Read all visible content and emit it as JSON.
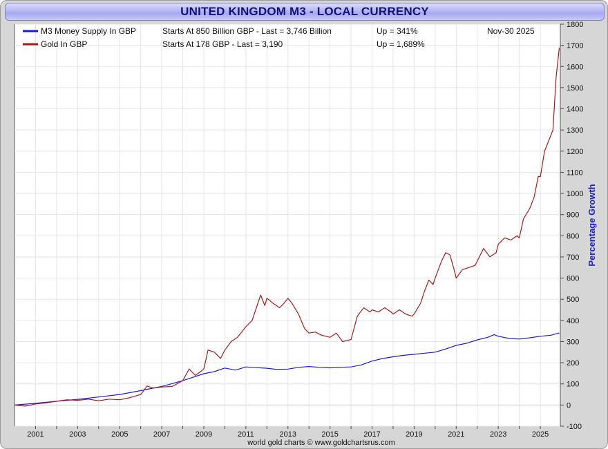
{
  "title": "UNITED KINGDOM M3 - LOCAL CURRENCY",
  "credit": "world gold charts © www.goldchartsrus.com",
  "date_label": "Nov-30  2025",
  "legend": [
    {
      "name": "M3 Money Supply In GBP",
      "info": "Starts At 850 Billion GBP - Last = 3,746 Billion",
      "growth": "Up = 341%",
      "color": "#1a1ae6"
    },
    {
      "name": "Gold In GBP",
      "info": "Starts At 178 GBP - Last = 3,190",
      "growth": "Up = 1,689%",
      "color": "#b01818"
    }
  ],
  "chart_data": {
    "type": "line",
    "ylabel": "Percentage Growth",
    "xlabel": "",
    "xlim": [
      2000.0,
      2025.95
    ],
    "ylim": [
      -100,
      1800
    ],
    "x_ticks": [
      "2001",
      "2003",
      "2005",
      "2007",
      "2009",
      "2011",
      "2013",
      "2015",
      "2017",
      "2019",
      "2021",
      "2023",
      "2025"
    ],
    "y_ticks": [
      "-100",
      "0",
      "100",
      "200",
      "300",
      "400",
      "500",
      "600",
      "700",
      "800",
      "900",
      "1000",
      "1100",
      "1200",
      "1300",
      "1400",
      "1500",
      "1600",
      "1700",
      "1800"
    ],
    "grid": true,
    "legend_position": "top-left",
    "series": [
      {
        "name": "M3 Money Supply In GBP",
        "color": "#1a1ae6",
        "points": [
          [
            2000.0,
            0
          ],
          [
            2001.0,
            8
          ],
          [
            2002.0,
            18
          ],
          [
            2003.0,
            27
          ],
          [
            2004.0,
            38
          ],
          [
            2005.0,
            50
          ],
          [
            2006.0,
            68
          ],
          [
            2007.0,
            88
          ],
          [
            2008.0,
            115
          ],
          [
            2009.0,
            148
          ],
          [
            2009.5,
            158
          ],
          [
            2010.0,
            175
          ],
          [
            2010.5,
            165
          ],
          [
            2011.0,
            180
          ],
          [
            2011.5,
            177
          ],
          [
            2012.0,
            174
          ],
          [
            2012.5,
            168
          ],
          [
            2013.0,
            170
          ],
          [
            2013.5,
            178
          ],
          [
            2014.0,
            182
          ],
          [
            2014.5,
            178
          ],
          [
            2015.0,
            176
          ],
          [
            2015.5,
            178
          ],
          [
            2016.0,
            180
          ],
          [
            2016.5,
            190
          ],
          [
            2017.0,
            208
          ],
          [
            2017.5,
            220
          ],
          [
            2018.0,
            228
          ],
          [
            2018.5,
            235
          ],
          [
            2019.0,
            240
          ],
          [
            2019.5,
            245
          ],
          [
            2020.0,
            250
          ],
          [
            2020.5,
            265
          ],
          [
            2021.0,
            282
          ],
          [
            2021.5,
            292
          ],
          [
            2022.0,
            308
          ],
          [
            2022.5,
            320
          ],
          [
            2022.8,
            333
          ],
          [
            2023.0,
            325
          ],
          [
            2023.5,
            315
          ],
          [
            2024.0,
            312
          ],
          [
            2024.5,
            318
          ],
          [
            2025.0,
            325
          ],
          [
            2025.5,
            330
          ],
          [
            2025.9,
            341
          ]
        ]
      },
      {
        "name": "Gold In GBP",
        "color": "#b01818",
        "points": [
          [
            2000.0,
            0
          ],
          [
            2000.5,
            -5
          ],
          [
            2001.0,
            5
          ],
          [
            2001.5,
            10
          ],
          [
            2002.0,
            18
          ],
          [
            2002.5,
            25
          ],
          [
            2003.0,
            22
          ],
          [
            2003.5,
            28
          ],
          [
            2004.0,
            20
          ],
          [
            2004.5,
            28
          ],
          [
            2005.0,
            25
          ],
          [
            2005.5,
            35
          ],
          [
            2006.0,
            50
          ],
          [
            2006.3,
            90
          ],
          [
            2006.6,
            80
          ],
          [
            2007.0,
            85
          ],
          [
            2007.5,
            88
          ],
          [
            2008.0,
            115
          ],
          [
            2008.3,
            170
          ],
          [
            2008.6,
            140
          ],
          [
            2009.0,
            170
          ],
          [
            2009.2,
            260
          ],
          [
            2009.5,
            250
          ],
          [
            2009.8,
            220
          ],
          [
            2010.0,
            260
          ],
          [
            2010.3,
            300
          ],
          [
            2010.6,
            320
          ],
          [
            2011.0,
            370
          ],
          [
            2011.3,
            400
          ],
          [
            2011.5,
            460
          ],
          [
            2011.7,
            520
          ],
          [
            2011.9,
            470
          ],
          [
            2012.0,
            505
          ],
          [
            2012.3,
            480
          ],
          [
            2012.6,
            460
          ],
          [
            2012.8,
            480
          ],
          [
            2013.0,
            505
          ],
          [
            2013.2,
            480
          ],
          [
            2013.5,
            430
          ],
          [
            2013.8,
            360
          ],
          [
            2014.0,
            340
          ],
          [
            2014.3,
            345
          ],
          [
            2014.6,
            330
          ],
          [
            2015.0,
            320
          ],
          [
            2015.3,
            340
          ],
          [
            2015.6,
            300
          ],
          [
            2016.0,
            310
          ],
          [
            2016.3,
            420
          ],
          [
            2016.6,
            460
          ],
          [
            2016.9,
            440
          ],
          [
            2017.0,
            450
          ],
          [
            2017.3,
            440
          ],
          [
            2017.6,
            460
          ],
          [
            2017.9,
            440
          ],
          [
            2018.0,
            430
          ],
          [
            2018.3,
            450
          ],
          [
            2018.6,
            430
          ],
          [
            2018.9,
            420
          ],
          [
            2019.0,
            430
          ],
          [
            2019.3,
            480
          ],
          [
            2019.5,
            540
          ],
          [
            2019.7,
            590
          ],
          [
            2019.9,
            570
          ],
          [
            2020.0,
            600
          ],
          [
            2020.3,
            680
          ],
          [
            2020.5,
            720
          ],
          [
            2020.7,
            710
          ],
          [
            2020.9,
            640
          ],
          [
            2021.0,
            600
          ],
          [
            2021.3,
            640
          ],
          [
            2021.6,
            650
          ],
          [
            2021.9,
            660
          ],
          [
            2022.0,
            680
          ],
          [
            2022.3,
            740
          ],
          [
            2022.6,
            700
          ],
          [
            2022.9,
            720
          ],
          [
            2023.0,
            760
          ],
          [
            2023.3,
            790
          ],
          [
            2023.6,
            780
          ],
          [
            2023.9,
            800
          ],
          [
            2024.0,
            790
          ],
          [
            2024.2,
            880
          ],
          [
            2024.5,
            930
          ],
          [
            2024.7,
            980
          ],
          [
            2024.9,
            1080
          ],
          [
            2025.0,
            1080
          ],
          [
            2025.2,
            1200
          ],
          [
            2025.4,
            1250
          ],
          [
            2025.6,
            1300
          ],
          [
            2025.75,
            1550
          ],
          [
            2025.9,
            1689
          ]
        ]
      }
    ]
  }
}
